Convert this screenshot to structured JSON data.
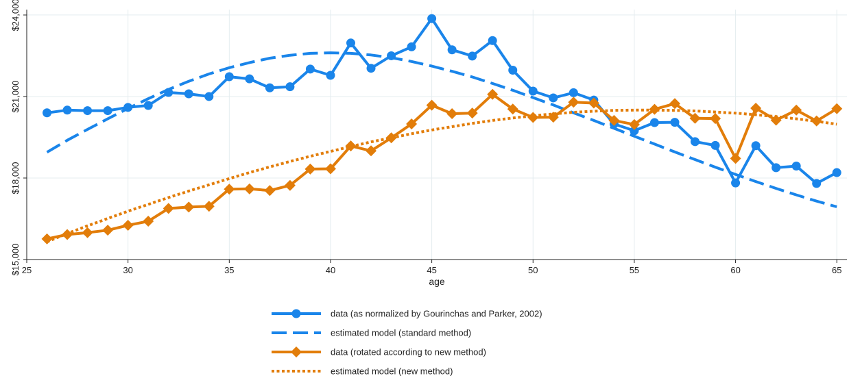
{
  "chart_data": {
    "type": "line",
    "title": "",
    "xlabel": "age",
    "ylabel": "",
    "xlim": [
      25,
      65.5
    ],
    "ylim": [
      15000,
      24200
    ],
    "x_ticks": [
      25,
      30,
      35,
      40,
      45,
      50,
      55,
      60,
      65
    ],
    "x_tick_labels": [
      "25",
      "30",
      "35",
      "40",
      "45",
      "50",
      "55",
      "60",
      "65"
    ],
    "y_ticks": [
      15000,
      18000,
      21000,
      24000
    ],
    "y_tick_labels": [
      "$15,000",
      "$18,000",
      "$21,000",
      "$24,000"
    ],
    "grid": true,
    "legend_position": "bottom",
    "x": [
      26,
      27,
      28,
      29,
      30,
      31,
      32,
      33,
      34,
      35,
      36,
      37,
      38,
      39,
      40,
      41,
      42,
      43,
      44,
      45,
      46,
      47,
      48,
      49,
      50,
      51,
      52,
      53,
      54,
      55,
      56,
      57,
      58,
      59,
      60,
      61,
      62,
      63,
      64,
      65
    ],
    "series": [
      {
        "name": "data (as normalized by Gourinchas and Parker, 2002)",
        "style": "line-circle",
        "color": "#1a85ea",
        "values": [
          20400,
          20500,
          20480,
          20480,
          20600,
          20670,
          21150,
          21100,
          21000,
          21730,
          21650,
          21320,
          21360,
          22010,
          21780,
          22970,
          22040,
          22500,
          22830,
          23870,
          22720,
          22490,
          23060,
          21970,
          21200,
          20950,
          21140,
          20870,
          19990,
          19740,
          20040,
          20050,
          19340,
          19200,
          17820,
          19190,
          18380,
          18440,
          17800,
          18200
        ]
      },
      {
        "name": "estimated model (standard method)",
        "style": "dashed",
        "color": "#1a85ea",
        "values": [
          18950,
          19390,
          19790,
          20180,
          20560,
          20920,
          21260,
          21560,
          21830,
          22060,
          22250,
          22410,
          22520,
          22590,
          22610,
          22590,
          22530,
          22430,
          22290,
          22120,
          21930,
          21720,
          21480,
          21230,
          20960,
          20690,
          20400,
          20120,
          19830,
          19540,
          19250,
          18960,
          18680,
          18400,
          18130,
          17870,
          17620,
          17380,
          17150,
          16940
        ]
      },
      {
        "name": "data (rotated according to new method)",
        "style": "line-diamond",
        "color": "#e27d0a",
        "values": [
          15760,
          15920,
          15990,
          16080,
          16260,
          16410,
          16880,
          16930,
          16960,
          17590,
          17600,
          17540,
          17730,
          18330,
          18340,
          19180,
          19000,
          19480,
          19990,
          20680,
          20370,
          20390,
          21080,
          20540,
          20230,
          20240,
          20790,
          20760,
          20120,
          19970,
          20530,
          20740,
          20200,
          20190,
          18720,
          20570,
          20130,
          20500,
          20100,
          20550
        ]
      },
      {
        "name": "estimated model (new method)",
        "style": "dotted",
        "color": "#e27d0a",
        "values": [
          15650,
          15960,
          16240,
          16510,
          16780,
          17030,
          17280,
          17520,
          17750,
          17980,
          18200,
          18410,
          18610,
          18800,
          18980,
          19160,
          19330,
          19480,
          19630,
          19770,
          19890,
          20010,
          20120,
          20210,
          20290,
          20360,
          20420,
          20460,
          20490,
          20500,
          20500,
          20490,
          20470,
          20430,
          20390,
          20330,
          20260,
          20180,
          20090,
          19980
        ]
      }
    ]
  }
}
